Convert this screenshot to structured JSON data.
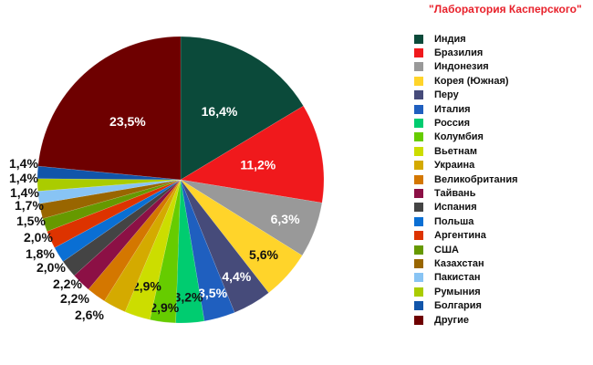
{
  "title": "\"Лаборатория Касперского\"",
  "chart_data": {
    "type": "pie",
    "title": "\"Лаборатория Касперского\"",
    "start_angle_deg": 0,
    "direction": "clockwise",
    "legend_position": "right",
    "slices": [
      {
        "label": "Индия",
        "value": 16.4,
        "text": "16,4%",
        "color": "#0b4a3a",
        "label_color": "#ffffff"
      },
      {
        "label": "Бразилия",
        "value": 11.2,
        "text": "11,2%",
        "color": "#f0191c",
        "label_color": "#ffffff"
      },
      {
        "label": "Индонезия",
        "value": 6.3,
        "text": "6,3%",
        "color": "#999999",
        "label_color": "#ffffff"
      },
      {
        "label": "Корея (Южная)",
        "value": 5.6,
        "text": "5,6%",
        "color": "#ffd42a",
        "label_color": "#111111"
      },
      {
        "label": "Перу",
        "value": 4.4,
        "text": "4,4%",
        "color": "#464b7a",
        "label_color": "#ffffff"
      },
      {
        "label": "Италия",
        "value": 3.5,
        "text": "3,5%",
        "color": "#1f5fbf",
        "label_color": "#ffffff"
      },
      {
        "label": "Россия",
        "value": 3.2,
        "text": "3,2%",
        "color": "#00cc70",
        "label_color": "#111111"
      },
      {
        "label": "Колумбия",
        "value": 2.9,
        "text": "2,9%",
        "color": "#66cc00",
        "label_color": "#111111"
      },
      {
        "label": "Вьетнам",
        "value": 2.9,
        "text": "2,9%",
        "color": "#ccdd00",
        "label_color": "#111111"
      },
      {
        "label": "Украина",
        "value": 2.6,
        "text": "2,6%",
        "color": "#d4aa00",
        "label_color": "#111111"
      },
      {
        "label": "Великобритания",
        "value": 2.2,
        "text": "2,2%",
        "color": "#d47700",
        "label_color": "#111111"
      },
      {
        "label": "Тайвань",
        "value": 2.2,
        "text": "2,2%",
        "color": "#8c1045",
        "label_color": "#111111"
      },
      {
        "label": "Испания",
        "value": 2.0,
        "text": "2,0%",
        "color": "#444444",
        "label_color": "#111111"
      },
      {
        "label": "Польша",
        "value": 1.8,
        "text": "1,8%",
        "color": "#0a6fd4",
        "label_color": "#111111"
      },
      {
        "label": "Аргентина",
        "value": 2.0,
        "text": "2,0%",
        "color": "#dd3300",
        "label_color": "#111111"
      },
      {
        "label": "США",
        "value": 1.5,
        "text": "1,5%",
        "color": "#669900",
        "label_color": "#111111"
      },
      {
        "label": "Казахстан",
        "value": 1.7,
        "text": "1,7%",
        "color": "#996600",
        "label_color": "#111111"
      },
      {
        "label": "Пакистан",
        "value": 1.4,
        "text": "1,4%",
        "color": "#88c4f4",
        "label_color": "#111111"
      },
      {
        "label": "Румыния",
        "value": 1.4,
        "text": "1,4%",
        "color": "#aacc00",
        "label_color": "#111111"
      },
      {
        "label": "Болгария",
        "value": 1.4,
        "text": "1,4%",
        "color": "#1155aa",
        "label_color": "#111111"
      },
      {
        "label": "Другие",
        "value": 23.5,
        "text": "23,5%",
        "color": "#6e0000",
        "label_color": "#ffffff"
      }
    ]
  }
}
